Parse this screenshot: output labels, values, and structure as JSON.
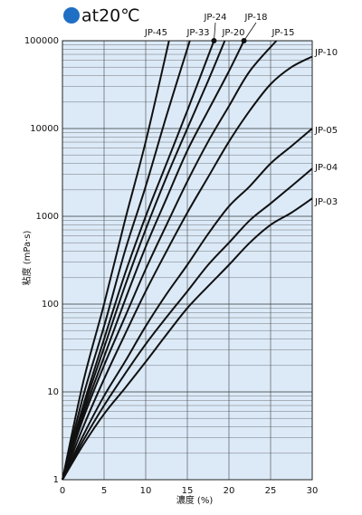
{
  "chart_data": {
    "type": "line",
    "title": "at20℃",
    "xlabel": "濃度 (%)",
    "ylabel": "粘度 (mPa·s)",
    "xlim": [
      0,
      30
    ],
    "xticks": [
      0,
      5,
      10,
      15,
      20,
      25,
      30
    ],
    "ylim": [
      1,
      100000
    ],
    "yticks": [
      1,
      10,
      100,
      1000,
      10000,
      100000
    ],
    "log_y": true,
    "grid": true,
    "background": "#dceaf8",
    "marker_color": "#1f6fc4",
    "series": [
      {
        "name": "JP-45",
        "color": "#111111",
        "x": [
          0,
          2.5,
          5,
          7.5,
          10,
          12.8
        ],
        "values": [
          1,
          13,
          100,
          890,
          7100,
          100000
        ]
      },
      {
        "name": "JP-33",
        "color": "#111111",
        "x": [
          0,
          2.5,
          5,
          7.5,
          10,
          12.5,
          15.3
        ],
        "values": [
          1,
          9,
          56,
          400,
          2200,
          14000,
          100000
        ]
      },
      {
        "name": "JP-24",
        "color": "#111111",
        "x": [
          0,
          2.5,
          5,
          7.5,
          10,
          12.5,
          15,
          18.2
        ],
        "values": [
          1,
          7,
          40,
          220,
          1000,
          4000,
          16000,
          100000
        ]
      },
      {
        "name": "JP-20",
        "color": "#111111",
        "x": [
          0,
          2.5,
          5,
          7.5,
          10,
          12.5,
          15,
          17.5,
          19.5
        ],
        "values": [
          1,
          6.3,
          32,
          160,
          710,
          2800,
          10000,
          35000,
          100000
        ]
      },
      {
        "name": "JP-18",
        "color": "#111111",
        "x": [
          0,
          2.5,
          5,
          7.5,
          10,
          12.5,
          15,
          17.5,
          20,
          21.8
        ],
        "values": [
          1,
          5.6,
          25,
          110,
          450,
          1600,
          5600,
          16000,
          45000,
          100000
        ]
      },
      {
        "name": "JP-15",
        "color": "#111111",
        "x": [
          0,
          2.5,
          5,
          7.5,
          10,
          12.5,
          15,
          17.5,
          20,
          22.5,
          25.7
        ],
        "values": [
          1,
          5,
          20,
          71,
          250,
          800,
          2500,
          7100,
          18000,
          45000,
          100000
        ]
      },
      {
        "name": "JP-10",
        "color": "#111111",
        "x": [
          0,
          2.5,
          5,
          7.5,
          10,
          12.5,
          15,
          17.5,
          20,
          22.5,
          25,
          27.5,
          30
        ],
        "values": [
          1,
          4,
          14,
          45,
          140,
          400,
          1100,
          2800,
          7100,
          16000,
          32000,
          50000,
          66000
        ]
      },
      {
        "name": "JP-05",
        "color": "#111111",
        "x": [
          0,
          2.5,
          5,
          7.5,
          10,
          12.5,
          15,
          17.5,
          20,
          22.5,
          25,
          27.5,
          30
        ],
        "values": [
          1,
          3.2,
          9,
          22,
          56,
          130,
          280,
          630,
          1300,
          2200,
          4000,
          6300,
          10000
        ]
      },
      {
        "name": "JP-04",
        "color": "#111111",
        "x": [
          0,
          2.5,
          5,
          7.5,
          10,
          12.5,
          15,
          17.5,
          20,
          22.5,
          25,
          27.5,
          30
        ],
        "values": [
          1,
          2.8,
          7,
          16,
          35,
          71,
          140,
          280,
          500,
          900,
          1400,
          2200,
          3500
        ]
      },
      {
        "name": "JP-03",
        "color": "#111111",
        "x": [
          0,
          2.5,
          5,
          7.5,
          10,
          12.5,
          15,
          17.5,
          20,
          22.5,
          25,
          27.5,
          30
        ],
        "values": [
          1,
          2.5,
          5.6,
          11,
          22,
          45,
          90,
          160,
          280,
          500,
          800,
          1100,
          1600
        ]
      }
    ]
  }
}
